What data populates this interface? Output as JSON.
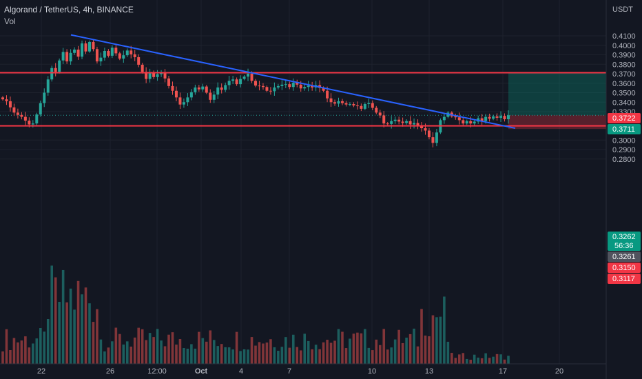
{
  "header": {
    "symbol": "Algorand / TetherUS, 4h, BINANCE",
    "indicator": "Vol"
  },
  "chart_data": {
    "type": "candlestick",
    "currency": "USDT",
    "ylim": [
      0.275,
      0.415
    ],
    "y_ticks": [
      "0.4100",
      "0.4000",
      "0.3900",
      "0.3800",
      "0.3700",
      "0.3600",
      "0.3500",
      "0.3400",
      "0.3300",
      "0.3000",
      "0.2900",
      "0.2800"
    ],
    "x_ticks": [
      "22",
      "26",
      "12:00",
      "Oct",
      "4",
      "7",
      "10",
      "13",
      "17",
      "20"
    ],
    "price_badges": [
      {
        "label": "0.3722",
        "value": 0.3722,
        "color": "#f23645"
      },
      {
        "label": "0.3711",
        "value": 0.3711,
        "color": "#089981"
      },
      {
        "label": "0.3262",
        "value": 0.3262,
        "color": "#089981",
        "countdown": "56:36"
      },
      {
        "label": "0.3261",
        "value": 0.3261,
        "color": "#50535e"
      },
      {
        "label": "0.3150",
        "value": 0.315,
        "color": "#f23645"
      },
      {
        "label": "0.3117",
        "value": 0.3117,
        "color": "#f23645"
      }
    ],
    "horizontal_levels": [
      {
        "value": 0.3711,
        "color": "#f23645"
      },
      {
        "value": 0.315,
        "color": "#f23645"
      }
    ],
    "trendline": {
      "from": {
        "x": "Sep 23",
        "y": 0.411
      },
      "to": {
        "x": "Oct 17",
        "y": 0.3125
      },
      "color": "#2962ff"
    },
    "position": {
      "entry": 0.3262,
      "target": 0.3711,
      "stop": 0.3117,
      "profit_color": "#089981",
      "loss_color": "#f23645"
    },
    "colors": {
      "up": "#26a69a",
      "down": "#ef5350",
      "background": "#131722"
    },
    "series": [
      {
        "name": "price",
        "values": [
          0.343,
          0.341,
          0.3345,
          0.329,
          0.3265,
          0.3245,
          0.3205,
          0.3165,
          0.3175,
          0.327,
          0.339,
          0.35,
          0.364,
          0.376,
          0.372,
          0.384,
          0.393,
          0.383,
          0.392,
          0.3955,
          0.388,
          0.402,
          0.3935,
          0.4035,
          0.396,
          0.383,
          0.387,
          0.394,
          0.389,
          0.3975,
          0.3915,
          0.386,
          0.3895,
          0.3945,
          0.3905,
          0.3875,
          0.3795,
          0.372,
          0.3645,
          0.371,
          0.3665,
          0.3695,
          0.3705,
          0.365,
          0.357,
          0.352,
          0.345,
          0.3375,
          0.34,
          0.345,
          0.3505,
          0.3555,
          0.3535,
          0.3565,
          0.35,
          0.3425,
          0.348,
          0.3555,
          0.353,
          0.358,
          0.3625,
          0.364,
          0.359,
          0.3645,
          0.367,
          0.37,
          0.3625,
          0.3575,
          0.357,
          0.356,
          0.352,
          0.3515,
          0.3555,
          0.357,
          0.3585,
          0.359,
          0.356,
          0.3605,
          0.3585,
          0.3545,
          0.356,
          0.3575,
          0.3555,
          0.358,
          0.355,
          0.352,
          0.344,
          0.34,
          0.3385,
          0.341,
          0.339,
          0.3375,
          0.338,
          0.3365,
          0.336,
          0.333,
          0.338,
          0.339,
          0.334,
          0.329,
          0.326,
          0.3175,
          0.317,
          0.32,
          0.3215,
          0.3195,
          0.318,
          0.32,
          0.3165,
          0.318,
          0.315,
          0.3125,
          0.31,
          0.303,
          0.297,
          0.308,
          0.321,
          0.3245,
          0.329,
          0.325,
          0.324,
          0.321,
          0.3175,
          0.32,
          0.3175,
          0.3195,
          0.323,
          0.32,
          0.3245,
          0.3225,
          0.325,
          0.3235,
          0.3255,
          0.322,
          0.3262
        ]
      }
    ]
  }
}
